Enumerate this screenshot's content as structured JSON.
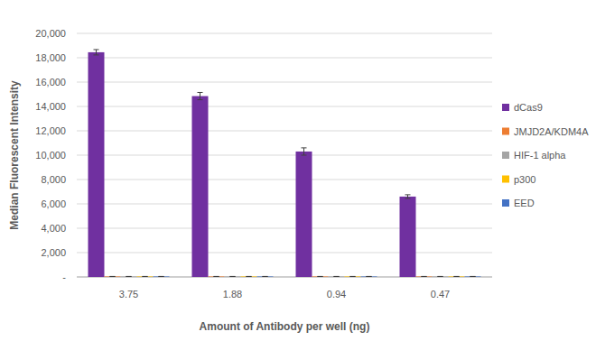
{
  "chart_data": {
    "type": "bar",
    "x_label": "Amount of Antibody per well (ng)",
    "y_label": "Median Fluorescent Intensity",
    "categories": [
      "3.75",
      "1.88",
      "0.94",
      "0.47"
    ],
    "series": [
      {
        "name": "dCas9",
        "color": "#7030a0",
        "values": [
          18450,
          14850,
          10300,
          6600
        ],
        "errors": [
          220,
          300,
          300,
          150
        ]
      },
      {
        "name": "JMJD2A/KDM4A",
        "color": "#ed7d31",
        "values": [
          40,
          40,
          40,
          40
        ],
        "errors": [
          0,
          0,
          0,
          0
        ]
      },
      {
        "name": "HIF-1 alpha",
        "color": "#a5a5a5",
        "values": [
          40,
          40,
          40,
          40
        ],
        "errors": [
          0,
          0,
          0,
          0
        ]
      },
      {
        "name": "p300",
        "color": "#ffc000",
        "values": [
          40,
          40,
          40,
          40
        ],
        "errors": [
          0,
          0,
          0,
          0
        ]
      },
      {
        "name": "EED",
        "color": "#4472c4",
        "values": [
          40,
          40,
          40,
          40
        ],
        "errors": [
          0,
          0,
          0,
          0
        ]
      }
    ],
    "ylim": [
      0,
      20000
    ],
    "yticks": [
      {
        "value": 0,
        "label": "-"
      },
      {
        "value": 2000,
        "label": "2,000"
      },
      {
        "value": 4000,
        "label": "4,000"
      },
      {
        "value": 6000,
        "label": "6,000"
      },
      {
        "value": 8000,
        "label": "8,000"
      },
      {
        "value": 10000,
        "label": "10,000"
      },
      {
        "value": 12000,
        "label": "12,000"
      },
      {
        "value": 14000,
        "label": "14,000"
      },
      {
        "value": 16000,
        "label": "16,000"
      },
      {
        "value": 18000,
        "label": "18,000"
      },
      {
        "value": 20000,
        "label": "20,000"
      }
    ],
    "grid": true,
    "legend": "right"
  }
}
